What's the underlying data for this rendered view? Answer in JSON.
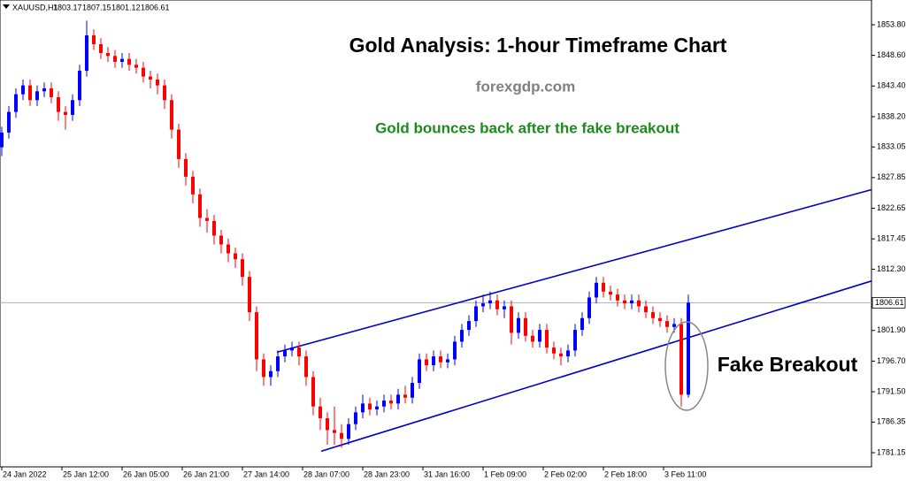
{
  "chart_data": {
    "type": "candlestick",
    "symbol": "XAUUSD,H1",
    "ohlc": [
      1803.17,
      1807.15,
      1801.12,
      1806.61
    ],
    "title": "Gold Analysis: 1-hour Timeframe Chart",
    "source": "forexgdp.com",
    "subtitle": "Gold bounces back after the fake breakout",
    "annotation": "Fake Breakout",
    "current_price": 1806.61,
    "up_color": "#0000ff",
    "down_color": "#ff0000",
    "trendline_color": "#0000c8",
    "xlim": [
      -0.5,
      245.75
    ],
    "ylim": [
      1778.75,
      1858.0
    ],
    "xticks": [
      {
        "value": 0,
        "label": "24 Jan 2022"
      },
      {
        "value": 17,
        "label": "25 Jan 12:00"
      },
      {
        "value": 34,
        "label": "26 Jan 05:00"
      },
      {
        "value": 51,
        "label": "26 Jan 21:00"
      },
      {
        "value": 68,
        "label": "27 Jan 14:00"
      },
      {
        "value": 85,
        "label": "28 Jan 07:00"
      },
      {
        "value": 102,
        "label": "28 Jan 23:00"
      },
      {
        "value": 119,
        "label": "31 Jan 16:00"
      },
      {
        "value": 136,
        "label": "1 Feb 09:00"
      },
      {
        "value": 153,
        "label": "2 Feb 02:00"
      },
      {
        "value": 170,
        "label": "2 Feb 18:00"
      },
      {
        "value": 187,
        "label": "3 Feb 11:00"
      }
    ],
    "yticks": [
      {
        "value": 1853.8,
        "label": "1853.80"
      },
      {
        "value": 1848.6,
        "label": "1848.60"
      },
      {
        "value": 1843.4,
        "label": "1843.40"
      },
      {
        "value": 1838.2,
        "label": "1838.20"
      },
      1833.05,
      1827.85,
      1822.65,
      1817.45,
      {
        "value": 1812.3,
        "label": "1812.30"
      },
      {
        "value": 1801.9,
        "label": "1801.90"
      },
      {
        "value": 1796.7,
        "label": "1796.70"
      },
      {
        "value": 1791.5,
        "label": "1791.50"
      },
      1786.35,
      1781.15
    ],
    "trendlines": [
      {
        "x": [
          77.75,
          245.75
        ],
        "y": [
          1798.2,
          1825.8
        ]
      },
      {
        "x": [
          90.25,
          245.75
        ],
        "y": [
          1781.4,
          1810.3
        ]
      }
    ],
    "x": [
      0,
      2,
      4,
      6,
      8,
      10,
      12,
      14,
      16,
      18,
      20,
      22,
      24,
      26,
      28,
      30,
      32,
      34,
      36,
      38,
      40,
      42,
      44,
      46,
      48,
      50,
      52,
      54,
      56,
      58,
      60,
      62,
      64,
      66,
      68,
      70,
      72,
      74,
      76,
      78,
      80,
      82,
      84,
      86,
      88,
      90,
      92,
      94,
      96,
      98,
      100,
      102,
      104,
      106,
      108,
      110,
      112,
      114,
      116,
      118,
      120,
      122,
      124,
      126,
      128,
      130,
      132,
      134,
      136,
      138,
      140,
      142,
      144,
      146,
      148,
      150,
      152,
      154,
      156,
      158,
      160,
      162,
      164,
      166,
      168,
      170,
      172,
      174,
      176,
      178,
      180,
      182,
      184,
      186,
      188,
      190,
      192,
      194
    ],
    "open": [
      1833,
      1835.5,
      1839,
      1842,
      1843.5,
      1841,
      1842.5,
      1843,
      1841.5,
      1839,
      1838.5,
      1841,
      1846,
      1852,
      1850.5,
      1849,
      1848.5,
      1847.5,
      1848,
      1847,
      1846.5,
      1845,
      1844.5,
      1843.5,
      1841,
      1836,
      1831,
      1828,
      1825,
      1821,
      1820.5,
      1818,
      1816.5,
      1815,
      1814,
      1811,
      1805,
      1797,
      1794,
      1795,
      1797.5,
      1798.5,
      1799,
      1797.5,
      1794,
      1789,
      1787,
      1785,
      1784.5,
      1783.5,
      1786,
      1788,
      1789.5,
      1788.5,
      1789,
      1790,
      1789.5,
      1791,
      1790.5,
      1793,
      1797,
      1796,
      1797.5,
      1796.5,
      1797,
      1800,
      1802,
      1803.5,
      1806,
      1806.5,
      1807,
      1805.5,
      1806,
      1801.5,
      1804,
      1801,
      1800,
      1802,
      1799,
      1798,
      1797.5,
      1798.5,
      1802,
      1804,
      1807.5,
      1810,
      1808.5,
      1808,
      1807,
      1806.5,
      1807,
      1806,
      1805,
      1804,
      1803.5,
      1802.5,
      1803,
      1791
    ],
    "high": [
      1836.5,
      1840,
      1843,
      1844.5,
      1844.5,
      1843.5,
      1844,
      1844,
      1842.5,
      1840,
      1842,
      1847,
      1854.5,
      1853,
      1851.5,
      1850,
      1849.5,
      1849,
      1849,
      1848,
      1847.5,
      1846,
      1845.5,
      1844.5,
      1842,
      1837,
      1832,
      1829,
      1826,
      1822.5,
      1821.5,
      1819,
      1817.5,
      1816,
      1815,
      1812,
      1806,
      1798,
      1796,
      1798.5,
      1799.5,
      1800,
      1800,
      1798.5,
      1795,
      1790.5,
      1788,
      1789,
      1786,
      1787,
      1789,
      1791,
      1790.5,
      1790,
      1791,
      1791,
      1792,
      1792.5,
      1794,
      1798,
      1798,
      1798.5,
      1798.5,
      1798,
      1801,
      1803,
      1804.5,
      1807,
      1808,
      1808.5,
      1808,
      1807,
      1807,
      1805,
      1805,
      1802,
      1803,
      1803,
      1800,
      1799,
      1799.5,
      1803,
      1805,
      1808.5,
      1811,
      1811,
      1809.5,
      1809,
      1808,
      1808,
      1808,
      1807,
      1806,
      1805,
      1804.5,
      1804,
      1804,
      1808
    ],
    "low": [
      1831.5,
      1834.5,
      1838,
      1841,
      1840,
      1840,
      1841.5,
      1840.5,
      1837.5,
      1836,
      1837.5,
      1840,
      1845,
      1849.5,
      1848,
      1847.5,
      1846.5,
      1846.5,
      1846,
      1845.5,
      1844,
      1843,
      1842,
      1839.5,
      1834.5,
      1829.5,
      1826.5,
      1823.5,
      1819.5,
      1818.5,
      1816.5,
      1815,
      1813.5,
      1812.5,
      1809.5,
      1803.5,
      1795,
      1792.5,
      1792.5,
      1794,
      1796.5,
      1797.5,
      1796,
      1792.5,
      1787.5,
      1785,
      1782.5,
      1782.5,
      1782,
      1782.5,
      1785,
      1787,
      1787.5,
      1787.5,
      1788,
      1788.5,
      1788.5,
      1789.5,
      1789.5,
      1792,
      1795,
      1795,
      1795.5,
      1795.5,
      1796,
      1799,
      1801,
      1802.5,
      1805,
      1805.5,
      1804.5,
      1804,
      1799.5,
      1800.5,
      1800,
      1799,
      1799,
      1798,
      1797,
      1796,
      1796.5,
      1797.5,
      1801,
      1803,
      1806.5,
      1807.5,
      1807,
      1806,
      1805.5,
      1805.5,
      1805,
      1804,
      1803,
      1802.5,
      1801.5,
      1801.5,
      1789,
      1790.5
    ],
    "close": [
      1835.5,
      1839,
      1842,
      1843.5,
      1841,
      1842.5,
      1843,
      1841.5,
      1839,
      1838.5,
      1841,
      1846,
      1852,
      1850.5,
      1849,
      1848.5,
      1847.5,
      1848,
      1847,
      1846.5,
      1845,
      1844.5,
      1843.5,
      1841,
      1836,
      1831,
      1828,
      1825,
      1821,
      1820.5,
      1818,
      1816.5,
      1815,
      1814,
      1811,
      1805,
      1797,
      1794,
      1795,
      1797.5,
      1798.5,
      1799,
      1797.5,
      1794,
      1789,
      1787,
      1785,
      1784.5,
      1783.5,
      1786,
      1788,
      1789.5,
      1788.5,
      1789,
      1790,
      1789.5,
      1791,
      1790.5,
      1793,
      1797,
      1796,
      1797.5,
      1796.5,
      1797,
      1800,
      1802,
      1803.5,
      1806,
      1806.5,
      1807,
      1805.5,
      1806,
      1801.5,
      1804,
      1801,
      1800,
      1802,
      1799,
      1798,
      1797.5,
      1798.5,
      1802,
      1804,
      1807.5,
      1810,
      1808.5,
      1808,
      1807,
      1806.5,
      1807,
      1806,
      1805,
      1804,
      1803.5,
      1802.5,
      1803,
      1791,
      1806.61
    ]
  }
}
